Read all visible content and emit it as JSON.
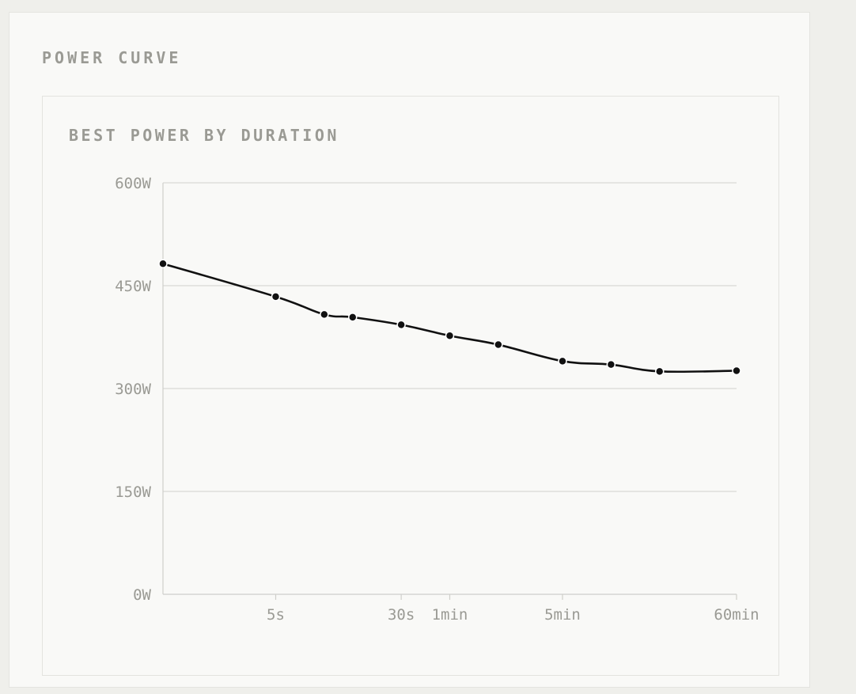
{
  "panel": {
    "title": "POWER CURVE"
  },
  "chart_card": {
    "title": "BEST POWER BY DURATION"
  },
  "chart_data": {
    "type": "line",
    "title": "BEST POWER BY DURATION",
    "xlabel": "",
    "ylabel": "",
    "x_scale": "log",
    "x_unit": "seconds",
    "xlim": [
      1,
      3600
    ],
    "ylim": [
      0,
      600
    ],
    "grid": true,
    "y_ticks": [
      {
        "value": 0,
        "label": "0W"
      },
      {
        "value": 150,
        "label": "150W"
      },
      {
        "value": 300,
        "label": "300W"
      },
      {
        "value": 450,
        "label": "450W"
      },
      {
        "value": 600,
        "label": "600W"
      }
    ],
    "x_ticks": [
      {
        "value": 5,
        "label": "5s"
      },
      {
        "value": 30,
        "label": "30s"
      },
      {
        "value": 60,
        "label": "1min"
      },
      {
        "value": 300,
        "label": "5min"
      },
      {
        "value": 3600,
        "label": "60min"
      }
    ],
    "series": [
      {
        "color": "#111111",
        "points": [
          {
            "x": 1,
            "y": 482
          },
          {
            "x": 5,
            "y": 434
          },
          {
            "x": 10,
            "y": 408
          },
          {
            "x": 15,
            "y": 404
          },
          {
            "x": 30,
            "y": 393
          },
          {
            "x": 60,
            "y": 377
          },
          {
            "x": 120,
            "y": 364
          },
          {
            "x": 300,
            "y": 340
          },
          {
            "x": 600,
            "y": 335
          },
          {
            "x": 1200,
            "y": 325
          },
          {
            "x": 3600,
            "y": 326
          }
        ]
      }
    ]
  }
}
